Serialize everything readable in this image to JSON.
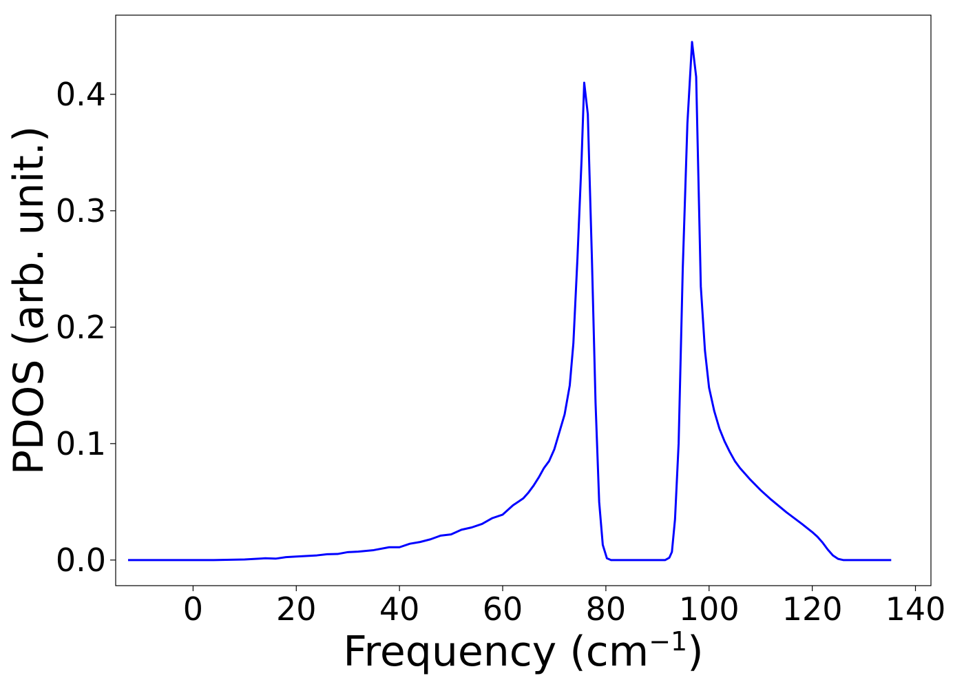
{
  "chart_data": {
    "type": "line",
    "title": "",
    "xlabel": "Frequency (cm",
    "xlabel_exponent": "−1",
    "xlabel_close": ")",
    "ylabel": "PDOS (arb. unit.)",
    "xlim": [
      -15,
      143
    ],
    "ylim": [
      -0.022,
      0.468
    ],
    "xticks": [
      0,
      20,
      40,
      60,
      80,
      100,
      120,
      140
    ],
    "xtick_labels": [
      "0",
      "20",
      "40",
      "60",
      "80",
      "100",
      "120",
      "140"
    ],
    "yticks": [
      0.0,
      0.1,
      0.2,
      0.3,
      0.4
    ],
    "ytick_labels": [
      "0.0",
      "0.1",
      "0.2",
      "0.3",
      "0.4"
    ],
    "grid": false,
    "series": [
      {
        "color": "#0000ff",
        "x": [
          -12.6,
          4,
          10,
          14,
          16,
          18,
          20,
          24,
          26,
          28,
          30,
          32,
          35,
          38,
          40,
          42,
          44,
          46,
          48,
          50,
          52,
          54,
          56,
          58,
          60,
          62,
          63,
          64,
          65,
          66,
          67,
          68,
          69,
          70,
          71,
          72,
          73,
          73.7,
          74.5,
          75.3,
          75.8,
          76.5,
          77.3,
          78,
          78.7,
          79.4,
          80.2,
          81,
          91.5,
          92.3,
          92.8,
          93.4,
          94.1,
          94.9,
          95.8,
          96.7,
          97.5,
          98.4,
          99.2,
          100,
          101,
          102,
          103,
          104,
          105,
          106,
          108,
          110,
          112,
          115,
          118,
          120,
          121,
          122,
          123,
          124,
          125,
          126,
          130,
          135.3
        ],
        "y": [
          0,
          0,
          0.0005,
          0.0015,
          0.0012,
          0.0025,
          0.003,
          0.004,
          0.005,
          0.0052,
          0.0068,
          0.0072,
          0.0085,
          0.011,
          0.011,
          0.014,
          0.0155,
          0.0178,
          0.021,
          0.022,
          0.026,
          0.028,
          0.031,
          0.036,
          0.039,
          0.047,
          0.05,
          0.053,
          0.058,
          0.064,
          0.071,
          0.079,
          0.085,
          0.095,
          0.11,
          0.125,
          0.15,
          0.186,
          0.26,
          0.345,
          0.41,
          0.383,
          0.258,
          0.135,
          0.05,
          0.013,
          0.0015,
          0,
          0,
          0.002,
          0.007,
          0.035,
          0.1,
          0.25,
          0.375,
          0.445,
          0.415,
          0.235,
          0.18,
          0.148,
          0.128,
          0.113,
          0.102,
          0.093,
          0.085,
          0.079,
          0.069,
          0.06,
          0.052,
          0.041,
          0.031,
          0.024,
          0.02,
          0.015,
          0.009,
          0.004,
          0.001,
          0,
          0,
          0
        ]
      }
    ]
  }
}
